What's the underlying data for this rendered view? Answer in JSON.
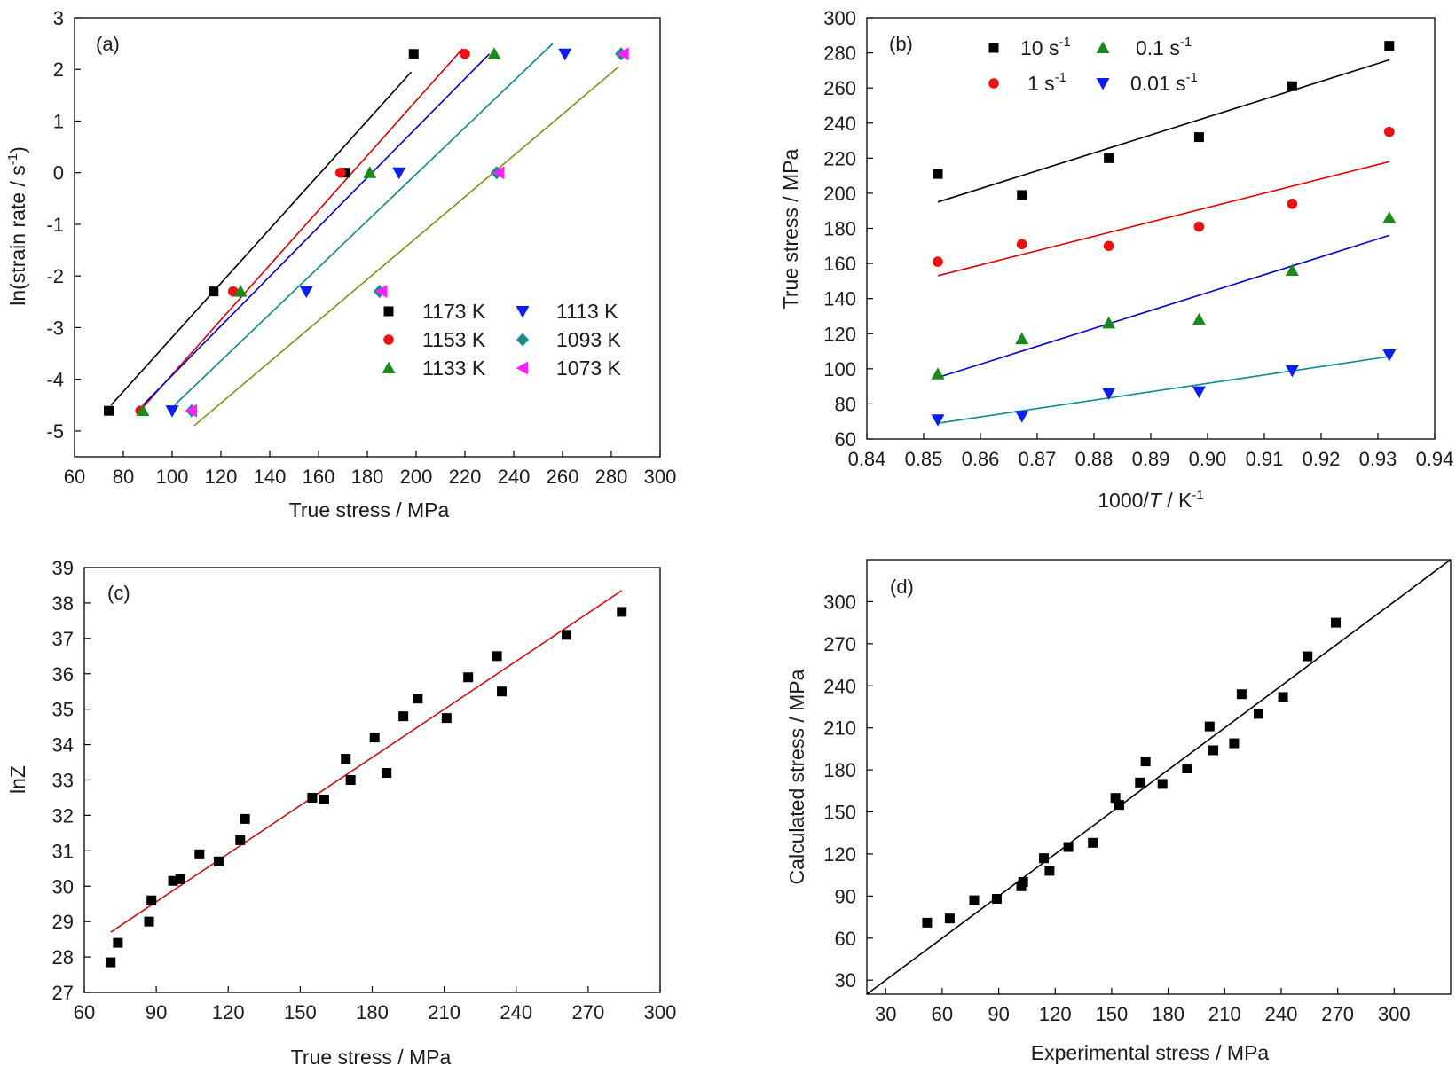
{
  "figure_title": "",
  "chart_data": [
    {
      "panel": "(a)",
      "type": "scatter",
      "xlabel": "True stress / MPa",
      "ylabel_parts": [
        "ln(strain rate / s",
        "-1",
        ")"
      ],
      "xlim": [
        60,
        300
      ],
      "ylim": [
        -5.5,
        3
      ],
      "xticks": [
        60,
        80,
        100,
        120,
        140,
        160,
        180,
        200,
        220,
        240,
        260,
        280,
        300
      ],
      "yticks": [
        -5,
        -4,
        -3,
        -2,
        -1,
        0,
        1,
        2,
        3
      ],
      "legend_position": "bottom-right",
      "series": [
        {
          "name": "1173 K",
          "marker": "square",
          "color": "#000000",
          "line_color": "#000000",
          "x": [
            74,
            117,
            171,
            199
          ],
          "y": [
            -4.61,
            -2.3,
            0,
            2.3
          ],
          "fit": [
            [
              75,
              -4.5
            ],
            [
              198,
              1.95
            ]
          ]
        },
        {
          "name": "1153 K",
          "marker": "circle",
          "color": "#ee1111",
          "line_color": "#dd0000",
          "x": [
            87,
            125,
            169,
            220
          ],
          "y": [
            -4.61,
            -2.3,
            0,
            2.3
          ],
          "fit": [
            [
              87,
              -4.6
            ],
            [
              219,
              2.4
            ]
          ]
        },
        {
          "name": "1133 K",
          "marker": "triangle-up",
          "color": "#1a8a1a",
          "line_color": "#0000cc",
          "x": [
            88,
            128,
            181,
            232
          ],
          "y": [
            -4.61,
            -2.3,
            0,
            2.3
          ],
          "fit": [
            [
              88,
              -4.5
            ],
            [
              230,
              2.3
            ]
          ]
        },
        {
          "name": "1113 K",
          "marker": "triangle-down",
          "color": "#0a1fee",
          "line_color": "#0a8a8a",
          "x": [
            100,
            155,
            193,
            261
          ],
          "y": [
            -4.61,
            -2.3,
            0,
            2.3
          ],
          "fit": [
            [
              101,
              -4.5
            ],
            [
              256,
              2.5
            ]
          ]
        },
        {
          "name": "1093 K",
          "marker": "diamond",
          "color": "#1a8a8a",
          "line_color": "#8a8a1a",
          "x": [
            108,
            185,
            233,
            284
          ],
          "y": [
            -4.61,
            -2.3,
            0,
            2.3
          ],
          "fit": [
            [
              109,
              -4.9
            ],
            [
              283,
              2.05
            ]
          ]
        },
        {
          "name": "1073 K",
          "marker": "triangle-left",
          "color": "#ff22ff",
          "x": [
            108,
            186,
            234,
            285
          ],
          "y": [
            -4.61,
            -2.3,
            0,
            2.3
          ]
        }
      ]
    },
    {
      "panel": "(b)",
      "type": "scatter",
      "xlabel_parts": [
        "1000/",
        "T",
        " / K",
        "-1"
      ],
      "ylabel": "True stress / MPa",
      "xlim": [
        0.84,
        0.94
      ],
      "ylim": [
        60,
        300
      ],
      "xticks": [
        0.84,
        0.85,
        0.86,
        0.87,
        0.88,
        0.89,
        0.9,
        0.91,
        0.92,
        0.93,
        0.94
      ],
      "yticks": [
        60,
        80,
        100,
        120,
        140,
        160,
        180,
        200,
        220,
        240,
        260,
        280,
        300
      ],
      "legend_position": "top-left",
      "series": [
        {
          "name_parts": [
            "10 s",
            "-1"
          ],
          "marker": "square",
          "color": "#000000",
          "line_color": "#000000",
          "x": [
            0.8525,
            0.8673,
            0.8826,
            0.8985,
            0.9149,
            0.932
          ],
          "y": [
            211,
            199,
            220,
            232,
            261,
            284
          ],
          "fit": [
            [
              0.8525,
              195
            ],
            [
              0.932,
              276
            ]
          ]
        },
        {
          "name_parts": [
            "1 s",
            "-1"
          ],
          "marker": "circle",
          "color": "#ee1111",
          "line_color": "#dd0000",
          "x": [
            0.8525,
            0.8673,
            0.8826,
            0.8985,
            0.9149,
            0.932
          ],
          "y": [
            161,
            171,
            170,
            181,
            194,
            235
          ],
          "fit": [
            [
              0.8525,
              153
            ],
            [
              0.932,
              218
            ]
          ]
        },
        {
          "name_parts": [
            "0.1 s",
            "-1"
          ],
          "marker": "triangle-up",
          "color": "#1a8a1a",
          "line_color": "#0000cc",
          "x": [
            0.8525,
            0.8673,
            0.8826,
            0.8985,
            0.9149,
            0.932
          ],
          "y": [
            97,
            117,
            126,
            128,
            156,
            186
          ],
          "fit": [
            [
              0.8525,
              95
            ],
            [
              0.932,
              176
            ]
          ]
        },
        {
          "name_parts": [
            "0.01 s",
            "-1"
          ],
          "marker": "triangle-down",
          "color": "#0a1fee",
          "line_color": "#0a8a8a",
          "x": [
            0.8525,
            0.8673,
            0.8826,
            0.8985,
            0.9149,
            0.932
          ],
          "y": [
            71,
            73,
            86,
            87,
            99,
            108
          ],
          "fit": [
            [
              0.8525,
              69
            ],
            [
              0.932,
              107
            ]
          ]
        }
      ]
    },
    {
      "panel": "(c)",
      "type": "scatter",
      "xlabel": "True stress / MPa",
      "ylabel": "lnZ",
      "xlim": [
        60,
        300
      ],
      "ylim": [
        27,
        39
      ],
      "xticks": [
        60,
        90,
        120,
        150,
        180,
        210,
        240,
        270,
        300
      ],
      "yticks": [
        27,
        28,
        29,
        30,
        31,
        32,
        33,
        34,
        35,
        36,
        37,
        38,
        39
      ],
      "series": [
        {
          "marker": "square",
          "color": "#000000",
          "line_color": "#cc1111",
          "x": [
            71,
            74,
            87,
            88,
            97,
            100,
            108,
            116,
            125,
            127,
            155,
            160,
            169,
            171,
            181,
            186,
            193,
            199,
            211,
            220,
            232,
            234,
            261,
            284
          ],
          "y": [
            27.85,
            28.4,
            29.0,
            29.6,
            30.15,
            30.2,
            30.9,
            30.7,
            31.3,
            31.9,
            32.5,
            32.45,
            33.6,
            33.0,
            34.2,
            33.2,
            34.8,
            35.3,
            34.75,
            35.9,
            36.5,
            35.5,
            37.1,
            37.75
          ],
          "fit": [
            [
              71,
              28.7
            ],
            [
              284,
              38.35
            ]
          ]
        }
      ]
    },
    {
      "panel": "(d)",
      "type": "scatter",
      "xlabel": "Experimental stress / MPa",
      "ylabel": "Calculated stress / MPa",
      "xlim": [
        20,
        330
      ],
      "ylim": [
        20,
        330
      ],
      "xticks": [
        30,
        60,
        90,
        120,
        150,
        180,
        210,
        240,
        270,
        300
      ],
      "yticks": [
        30,
        60,
        90,
        120,
        150,
        180,
        210,
        240,
        270,
        300
      ],
      "series": [
        {
          "marker": "square",
          "color": "#000000",
          "line_color": "#000000",
          "x": [
            52,
            64,
            77,
            89,
            102,
            103,
            114,
            117,
            127,
            140,
            152,
            154,
            165,
            168,
            177,
            190,
            202,
            204,
            215,
            219,
            228,
            241,
            254,
            269
          ],
          "y": [
            71,
            74,
            87,
            88,
            97,
            100,
            117,
            108,
            125,
            128,
            160,
            155,
            171,
            186,
            170,
            181,
            211,
            194,
            199,
            234,
            220,
            232,
            261,
            285
          ],
          "fit": [
            [
              20,
              20
            ],
            [
              330,
              330
            ]
          ]
        }
      ]
    }
  ]
}
